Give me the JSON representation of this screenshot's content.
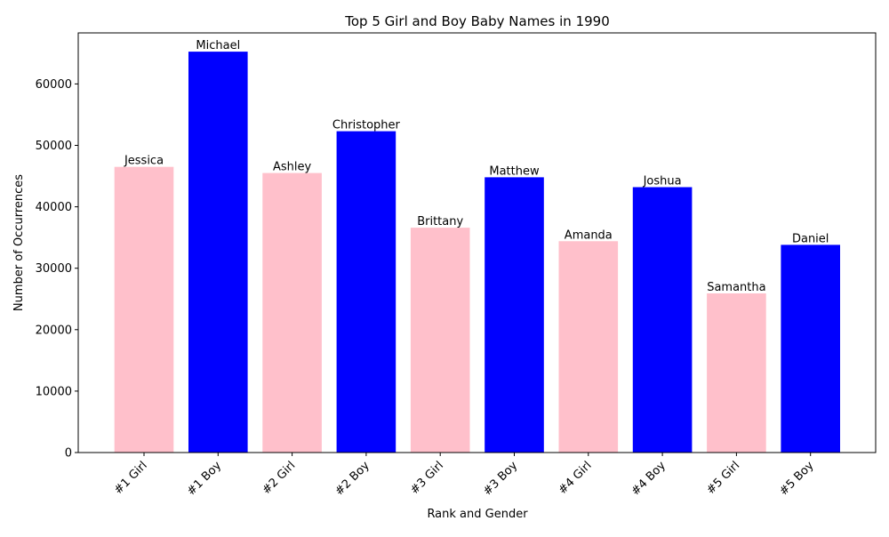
{
  "chart_data": {
    "type": "bar",
    "title": "Top 5 Girl and Boy Baby Names in 1990",
    "xlabel": "Rank and Gender",
    "ylabel": "Number of Occurrences",
    "ylim": [
      0,
      68300
    ],
    "yticks": [
      0,
      10000,
      20000,
      30000,
      40000,
      50000,
      60000
    ],
    "grid": false,
    "categories": [
      "#1 Girl",
      "#1 Boy",
      "#2 Girl",
      "#2 Boy",
      "#3 Girl",
      "#3 Boy",
      "#4 Girl",
      "#4 Boy",
      "#5 Girl",
      "#5 Boy"
    ],
    "values": [
      46500,
      65250,
      45500,
      52300,
      36600,
      44800,
      34400,
      43200,
      25900,
      33800
    ],
    "data_labels": [
      "Jessica",
      "Michael",
      "Ashley",
      "Christopher",
      "Brittany",
      "Matthew",
      "Amanda",
      "Joshua",
      "Samantha",
      "Daniel"
    ],
    "bar_colors": [
      "#ffc0cb",
      "#0000ff",
      "#ffc0cb",
      "#0000ff",
      "#ffc0cb",
      "#0000ff",
      "#ffc0cb",
      "#0000ff",
      "#ffc0cb",
      "#0000ff"
    ]
  }
}
